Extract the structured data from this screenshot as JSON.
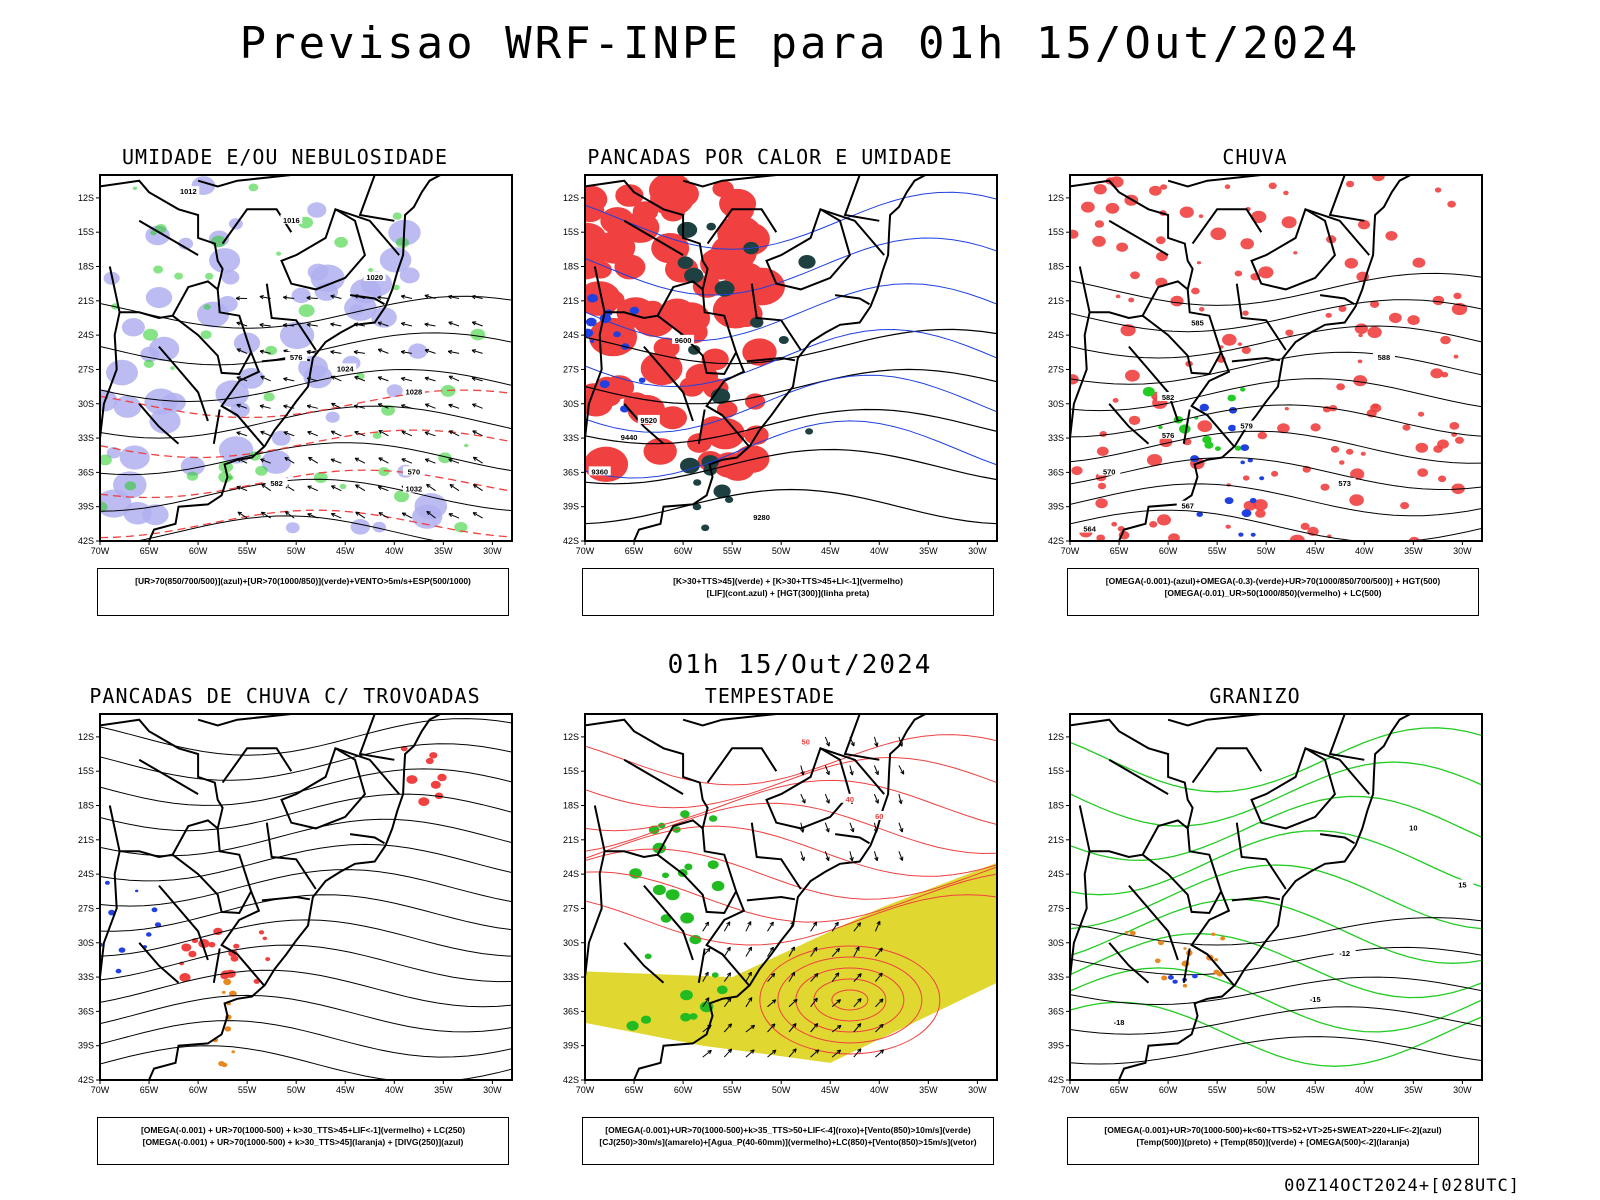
{
  "main_title": "Previsao WRF-INPE  para 01h 15/Out/2024",
  "mid_label": "01h 15/Out/2024",
  "footer": "00Z14OCT2024+[028UTC]",
  "axes": {
    "lat_labels": [
      "12S",
      "15S",
      "18S",
      "21S",
      "24S",
      "27S",
      "30S",
      "33S",
      "36S",
      "39S",
      "42S"
    ],
    "lon_labels": [
      "70W",
      "65W",
      "60W",
      "55W",
      "50W",
      "45W",
      "40W",
      "35W",
      "30W"
    ]
  },
  "panels": [
    {
      "title": "UMIDADE E/OU NEBULOSIDADE",
      "legend": [
        "[UR>70(850/700/500)](azul)+[UR>70(1000/850)](verde)+VENTO>5m/s+ESP(500/1000)"
      ],
      "contour_labels": [
        "1012",
        "1016",
        "1020",
        "1024",
        "1028",
        "1032",
        "570",
        "576",
        "582"
      ]
    },
    {
      "title": "PANCADAS POR CALOR E UMIDADE",
      "legend": [
        "[K>30+TTS>45](verde) + [K>30+TTS>45+LI<-1](vermelho)",
        "[LIF](cont.azul) + [HGT(300)](linha preta)"
      ],
      "contour_labels": [
        "9600",
        "9520",
        "9440",
        "9360",
        "9280"
      ]
    },
    {
      "title": "CHUVA",
      "legend": [
        "[OMEGA(-0.001)-(azul)+OMEGA(-0.3)-(verde)+UR>70(1000/850/700/500)] + HGT(500)",
        "[OMEGA(-0.01)_UR>50(1000/850)(vermelho) + LC(500)"
      ],
      "contour_labels": [
        "588",
        "585",
        "582",
        "579",
        "576",
        "573",
        "570",
        "567",
        "564"
      ]
    },
    {
      "title": "PANCADAS DE CHUVA C/ TROVOADAS",
      "legend": [
        "[OMEGA(-0.001) + UR>70(1000-500) + k>30_TTS>45+LIF<-1](vermelho) + LC(250)",
        "[OMEGA(-0.001) + UR>70(1000-500) + k>30_TTS>45](laranja) + [DIVG(250)](azul)"
      ],
      "contour_labels": []
    },
    {
      "title": "TEMPESTADE",
      "legend": [
        "[OMEGA(-0.001)+UR>70(1000-500)+k>35_TTS>50+LIF<-4](roxo)+[Vento(850)>10m/s](verde)",
        "[CJ(250)>30m/s](amarelo)+[Agua_P(40-60mm)](vermelho)+LC(850)+[Vento(850)>15m/s](vetor)"
      ],
      "contour_labels": [
        "50",
        "40",
        "60"
      ]
    },
    {
      "title": "GRANIZO",
      "legend": [
        "[OMEGA(-0.001)+UR>70(1000-500)+k<60+TTS>52+VT>25+SWEAT>220+LIF<-2](azul)",
        "[Temp(500)](preto) + [Temp(850)](verde) + [OMEGA(500)<-2](laranja)"
      ],
      "contour_labels": [
        "-12",
        "-15",
        "-18",
        "10",
        "15"
      ]
    }
  ],
  "colors": {
    "blue": "#2040e0",
    "green": "#22cc22",
    "red": "#f04040",
    "lavender": "#b0b0f0",
    "darkgreen": "#1e4040",
    "yellow": "#e0d830",
    "orange": "#e88820"
  }
}
